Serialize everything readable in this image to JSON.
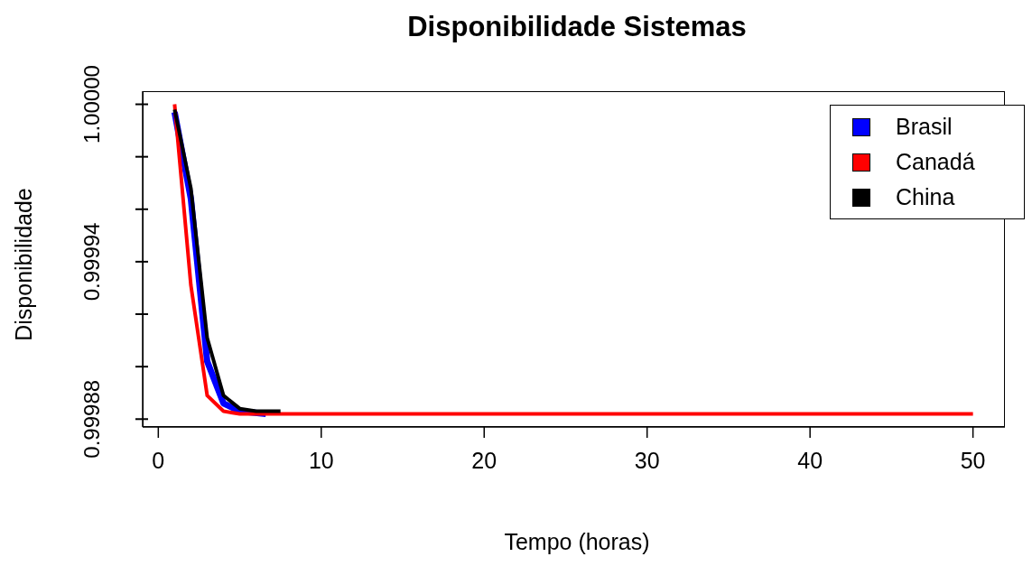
{
  "chart_data": {
    "type": "line",
    "title": "Disponibilidade Sistemas",
    "xlabel": "Tempo (horas)",
    "ylabel": "Disponibilidade",
    "xlim": [
      -0.96,
      51.96
    ],
    "xticks": [
      0,
      10,
      20,
      30,
      40,
      50
    ],
    "ylim": [
      0.999877,
      1.000005
    ],
    "yticks": [
      {
        "value": 0.99988,
        "label": "0.99988"
      },
      {
        "value": 0.9999,
        "label": null
      },
      {
        "value": 0.99992,
        "label": null
      },
      {
        "value": 0.99994,
        "label": "0.99994"
      },
      {
        "value": 0.99996,
        "label": null
      },
      {
        "value": 0.99998,
        "label": null
      },
      {
        "value": 1.0,
        "label": "1.00000"
      }
    ],
    "legend": "top right",
    "grid": false,
    "marker": "none",
    "line_style": "solid",
    "series": [
      {
        "name": "Brasil",
        "color": "#0000ff",
        "x": [
          1,
          2,
          3,
          4,
          5,
          6.6
        ],
        "values": [
          0.999997,
          0.999964,
          0.999902,
          0.999886,
          0.999883,
          0.999882
        ]
      },
      {
        "name": "Canadá",
        "color": "#ff0000",
        "x": [
          1,
          2,
          3,
          4,
          5,
          50
        ],
        "values": [
          1.0,
          0.999931,
          0.999889,
          0.999883,
          0.999882,
          0.999882
        ]
      },
      {
        "name": "China",
        "color": "#000000",
        "x": [
          1,
          2,
          3,
          4,
          5,
          6,
          7.5
        ],
        "values": [
          0.999998,
          0.999968,
          0.999911,
          0.999889,
          0.999884,
          0.999883,
          0.999883
        ]
      }
    ]
  }
}
